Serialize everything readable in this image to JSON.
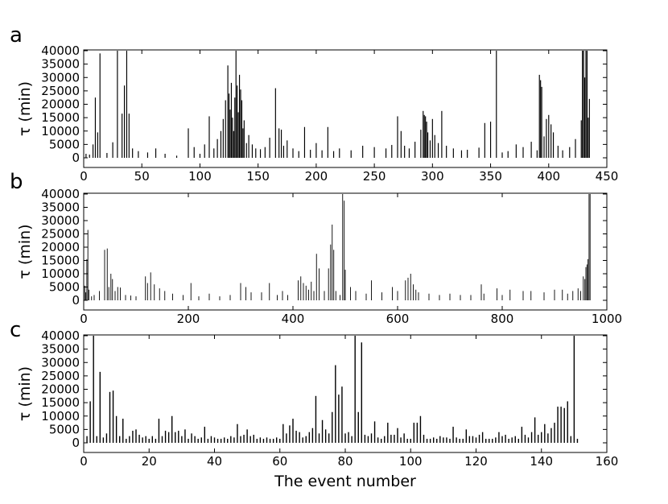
{
  "figure": {
    "xlabel": "The event number",
    "bar_color": "#000000"
  },
  "chart_data": [
    {
      "type": "bar",
      "panel_label": "a",
      "ylabel": "τ (min)",
      "xlim": [
        0,
        450
      ],
      "ylim": [
        -2000,
        40000
      ],
      "xticks": [
        0,
        50,
        100,
        150,
        200,
        250,
        300,
        350,
        400,
        450
      ],
      "yticks": [
        0,
        5000,
        10000,
        15000,
        20000,
        25000,
        30000,
        35000,
        40000
      ],
      "x": [
        2,
        5,
        8,
        10,
        12,
        14,
        20,
        25,
        29,
        33,
        35,
        37,
        39,
        42,
        47,
        55,
        62,
        70,
        80,
        90,
        95,
        100,
        104,
        108,
        112,
        115,
        118,
        120,
        122,
        124,
        125,
        126,
        127,
        128,
        129,
        130,
        131,
        132,
        133,
        134,
        135,
        136,
        137,
        138,
        140,
        142,
        145,
        148,
        152,
        156,
        160,
        165,
        168,
        170,
        172,
        175,
        180,
        185,
        190,
        195,
        200,
        205,
        210,
        215,
        220,
        230,
        240,
        250,
        260,
        265,
        270,
        273,
        276,
        280,
        285,
        290,
        292,
        293,
        294,
        295,
        296,
        298,
        300,
        302,
        305,
        308,
        312,
        318,
        325,
        330,
        340,
        345,
        350,
        355,
        360,
        365,
        372,
        378,
        385,
        390,
        392,
        393,
        394,
        396,
        398,
        400,
        402,
        404,
        408,
        412,
        418,
        423,
        428,
        429,
        430,
        431,
        432,
        433,
        434,
        435
      ],
      "values": [
        1500,
        1200,
        5000,
        22500,
        9500,
        39000,
        1800,
        5800,
        40000,
        16500,
        27000,
        40000,
        16500,
        3500,
        2500,
        2000,
        3500,
        1500,
        800,
        11000,
        4000,
        1500,
        5000,
        15500,
        3500,
        7000,
        10000,
        14500,
        21500,
        34500,
        24000,
        18000,
        28000,
        15000,
        10000,
        22500,
        40000,
        27000,
        17000,
        31000,
        25500,
        21500,
        11000,
        14000,
        5500,
        8500,
        5000,
        3500,
        3200,
        4000,
        7500,
        26000,
        11000,
        10500,
        4500,
        6500,
        3500,
        2500,
        11500,
        3000,
        5500,
        2800,
        11500,
        2500,
        3500,
        2800,
        4500,
        4000,
        3500,
        4800,
        15500,
        10000,
        4500,
        3500,
        6000,
        10500,
        17500,
        16000,
        15500,
        13500,
        9500,
        6500,
        14500,
        8500,
        5500,
        17500,
        4500,
        3500,
        2800,
        3000,
        3800,
        13000,
        13500,
        40000,
        2000,
        2500,
        5000,
        4000,
        6000,
        2800,
        31000,
        29000,
        26500,
        8000,
        14500,
        16000,
        12500,
        9500,
        4500,
        2800,
        4000,
        7000,
        14000,
        40000,
        40000,
        30000,
        40000,
        40000,
        15000,
        22000
      ]
    },
    {
      "type": "bar",
      "panel_label": "b",
      "ylabel": "τ (min)",
      "xlim": [
        0,
        1000
      ],
      "ylim": [
        -2000,
        40000
      ],
      "xticks": [
        0,
        200,
        400,
        600,
        800,
        1000
      ],
      "yticks": [
        0,
        5000,
        10000,
        15000,
        20000,
        25000,
        30000,
        35000,
        40000
      ],
      "x": [
        2,
        4,
        6,
        8,
        10,
        15,
        20,
        30,
        40,
        45,
        48,
        52,
        55,
        60,
        65,
        70,
        80,
        90,
        100,
        118,
        122,
        128,
        135,
        145,
        155,
        170,
        190,
        205,
        220,
        240,
        260,
        280,
        300,
        310,
        320,
        340,
        355,
        370,
        380,
        390,
        410,
        415,
        420,
        425,
        430,
        435,
        440,
        445,
        450,
        460,
        468,
        472,
        475,
        478,
        482,
        490,
        495,
        498,
        500,
        510,
        520,
        540,
        550,
        570,
        590,
        600,
        615,
        620,
        625,
        630,
        635,
        640,
        660,
        680,
        700,
        720,
        740,
        760,
        765,
        790,
        800,
        815,
        840,
        855,
        880,
        900,
        915,
        925,
        935,
        945,
        950,
        955,
        958,
        960,
        962,
        964,
        966,
        968
      ],
      "values": [
        5500,
        3000,
        15500,
        26500,
        4000,
        1500,
        2000,
        3500,
        19000,
        19500,
        5000,
        10000,
        8000,
        3500,
        5000,
        4800,
        2000,
        1800,
        1500,
        9000,
        6500,
        10500,
        6000,
        4500,
        3500,
        2500,
        2000,
        6500,
        1500,
        2500,
        1500,
        2000,
        6500,
        5000,
        3000,
        3000,
        6500,
        2000,
        3500,
        2000,
        7500,
        9000,
        6500,
        5500,
        4000,
        7000,
        3500,
        17500,
        12000,
        3500,
        12000,
        21000,
        28500,
        19000,
        3500,
        2000,
        40000,
        37500,
        11500,
        5000,
        3500,
        2500,
        7500,
        3000,
        5000,
        3500,
        7500,
        8500,
        10000,
        6000,
        4000,
        3000,
        2500,
        2000,
        2500,
        2000,
        2000,
        6000,
        2500,
        4500,
        2000,
        4000,
        3500,
        3500,
        3000,
        4000,
        4000,
        2500,
        3500,
        4500,
        3500,
        9000,
        8000,
        12500,
        13500,
        15500,
        40000,
        40000
      ]
    },
    {
      "type": "bar",
      "panel_label": "c",
      "ylabel": "τ (min)",
      "xlim": [
        0,
        160
      ],
      "ylim": [
        -4000,
        40000
      ],
      "xticks": [
        0,
        20,
        40,
        60,
        80,
        100,
        120,
        140,
        160
      ],
      "yticks": [
        0,
        5000,
        10000,
        15000,
        20000,
        25000,
        30000,
        35000,
        40000
      ],
      "x": [
        1,
        2,
        3,
        4,
        5,
        6,
        7,
        8,
        9,
        10,
        11,
        12,
        13,
        14,
        15,
        16,
        17,
        18,
        19,
        20,
        21,
        22,
        23,
        24,
        25,
        26,
        27,
        28,
        29,
        30,
        31,
        32,
        33,
        34,
        35,
        36,
        37,
        38,
        39,
        40,
        41,
        42,
        43,
        44,
        45,
        46,
        47,
        48,
        49,
        50,
        51,
        52,
        53,
        54,
        55,
        56,
        57,
        58,
        59,
        60,
        61,
        62,
        63,
        64,
        65,
        66,
        67,
        68,
        69,
        70,
        71,
        72,
        73,
        74,
        75,
        76,
        77,
        78,
        79,
        80,
        81,
        82,
        83,
        84,
        85,
        86,
        87,
        88,
        89,
        90,
        91,
        92,
        93,
        94,
        95,
        96,
        97,
        98,
        99,
        100,
        101,
        102,
        103,
        104,
        105,
        106,
        107,
        108,
        109,
        110,
        111,
        112,
        113,
        114,
        115,
        116,
        117,
        118,
        119,
        120,
        121,
        122,
        123,
        124,
        125,
        126,
        127,
        128,
        129,
        130,
        131,
        132,
        133,
        134,
        135,
        136,
        137,
        138,
        139,
        140,
        141,
        142,
        143,
        144,
        145,
        146,
        147,
        148,
        149,
        150,
        151
      ],
      "values": [
        2500,
        15500,
        40000,
        2500,
        26500,
        2000,
        3500,
        19000,
        19500,
        10000,
        2500,
        9000,
        1500,
        2500,
        4500,
        5000,
        3000,
        2000,
        2500,
        1500,
        2500,
        1500,
        9000,
        2500,
        4500,
        4000,
        10000,
        4000,
        4500,
        2500,
        5000,
        1500,
        3500,
        2500,
        1500,
        2000,
        6000,
        1500,
        2500,
        2000,
        1500,
        1500,
        2000,
        1500,
        2500,
        2000,
        7000,
        2500,
        3000,
        5000,
        2500,
        3000,
        1500,
        2000,
        1500,
        2000,
        1500,
        1500,
        2000,
        1500,
        7000,
        3500,
        6500,
        9000,
        4500,
        4000,
        2000,
        2500,
        4000,
        5500,
        17500,
        3500,
        8500,
        5000,
        3500,
        11500,
        29000,
        18000,
        21000,
        3500,
        4000,
        2500,
        40000,
        11500,
        37500,
        3000,
        2500,
        3500,
        8000,
        2000,
        1500,
        2500,
        7500,
        3000,
        3000,
        5500,
        2000,
        3500,
        1500,
        1500,
        7500,
        7500,
        10000,
        3000,
        1500,
        1500,
        2000,
        1500,
        2500,
        2000,
        2000,
        1500,
        6000,
        2000,
        1500,
        1500,
        5000,
        2500,
        2500,
        2000,
        3000,
        4000,
        1500,
        1500,
        1500,
        2000,
        4000,
        2500,
        3000,
        1500,
        2000,
        2500,
        1500,
        6000,
        3000,
        2000,
        4000,
        9500,
        3000,
        4000,
        7000,
        3500,
        5500,
        7500,
        13500,
        13500,
        13000,
        15500,
        2500,
        40000,
        1500
      ]
    }
  ]
}
